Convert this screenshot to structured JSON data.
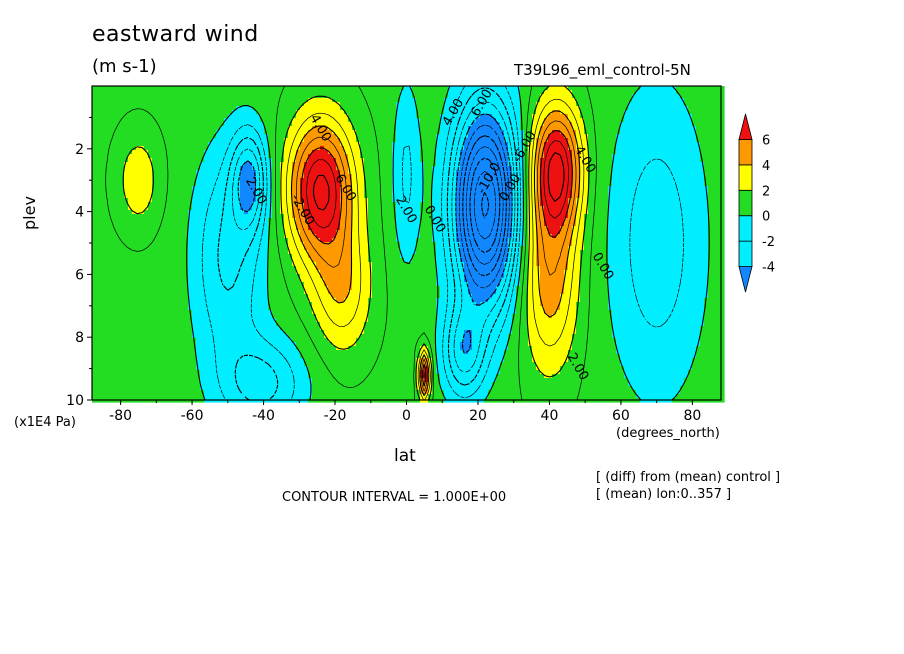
{
  "header": {
    "title": "eastward wind",
    "units": "(m s-1)",
    "run": "T39L96_eml_control-5N"
  },
  "footer": {
    "contour_interval": "CONTOUR INTERVAL = 1.000E+00",
    "note_diff": "[ (diff) from (mean) control ]",
    "note_mean": "[ (mean) lon:0..357 ]"
  },
  "colors": {
    "red": "#ee1111",
    "orange": "#ff9900",
    "yellow": "#ffff00",
    "green": "#22dd22",
    "cyan": "#00eeff",
    "blue": "#1188ff"
  },
  "chart_data": {
    "type": "contour",
    "title": "eastward wind",
    "units": "(m s-1)",
    "xlabel": "lat",
    "x_unit": "(degrees_north)",
    "ylabel": "plev",
    "y_unit": "(x1E4 Pa)",
    "xlim": [
      -88,
      88
    ],
    "ylim": [
      10,
      0
    ],
    "x_ticks": [
      -80,
      -60,
      -40,
      -20,
      0,
      20,
      40,
      60,
      80
    ],
    "y_ticks": [
      2,
      4,
      6,
      8,
      10
    ],
    "contour_interval": 1.0,
    "colorbar": {
      "levels": [
        -4,
        -2,
        0,
        2,
        4,
        6
      ],
      "bins": [
        {
          "range": "< -4",
          "color": "#1188ff"
        },
        {
          "range": "-4 to -2",
          "color": "#00eeff"
        },
        {
          "range": "-2 to 0",
          "color": "#00eeff"
        },
        {
          "range": "0 to 2",
          "color": "#22dd22"
        },
        {
          "range": "2 to 4",
          "color": "#ffff00"
        },
        {
          "range": "4 to 6",
          "color": "#ff9900"
        },
        {
          "range": "> 6",
          "color": "#ee1111"
        }
      ]
    },
    "features": [
      {
        "kind": "max",
        "lat": -24,
        "plev": 3.2,
        "value": 7
      },
      {
        "kind": "max",
        "lat": 42,
        "plev": 2.5,
        "value": 6.5
      },
      {
        "kind": "max",
        "lat": 5,
        "plev": 9.2,
        "value": 6
      },
      {
        "kind": "min",
        "lat": -45,
        "plev": 3.0,
        "value": -4
      },
      {
        "kind": "min",
        "lat": 22,
        "plev": 4.0,
        "value": -10
      }
    ],
    "contour_labels": [
      {
        "text": "4.00",
        "lat": -25,
        "plev": 1.4
      },
      {
        "text": "6.00",
        "lat": -18,
        "plev": 3.3
      },
      {
        "text": "2.00",
        "lat": -1,
        "plev": 4.0
      },
      {
        "text": "2.00",
        "lat": -43,
        "plev": 3.4
      },
      {
        "text": "-2.00",
        "lat": -30,
        "plev": 4.0
      },
      {
        "text": "0.00",
        "lat": 7,
        "plev": 4.3
      },
      {
        "text": "4.00",
        "lat": 14,
        "plev": 0.9
      },
      {
        "text": "6.00",
        "lat": 22,
        "plev": 0.6
      },
      {
        "text": "-10.0",
        "lat": 24,
        "plev": 3.0
      },
      {
        "text": "0.00",
        "lat": 30,
        "plev": 3.3
      },
      {
        "text": "-6.00",
        "lat": 34,
        "plev": 2.0
      },
      {
        "text": "4.00",
        "lat": 49,
        "plev": 2.4
      },
      {
        "text": "0.00",
        "lat": 54,
        "plev": 5.8
      },
      {
        "text": "2.00",
        "lat": 47,
        "plev": 9.0
      }
    ]
  }
}
